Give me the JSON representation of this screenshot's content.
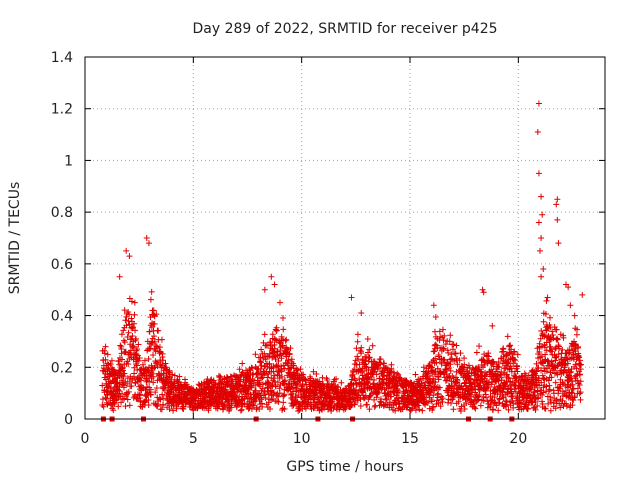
{
  "chart_data": {
    "type": "scatter",
    "title": "Day 289 of 2022, SRMTID for receiver p425",
    "xlabel": "GPS time / hours",
    "ylabel": "SRMTID / TECUs",
    "xlim": [
      0,
      24
    ],
    "ylim": [
      0,
      1.4
    ],
    "x_ticks": [
      0,
      5,
      10,
      15,
      20
    ],
    "x_tick_labels": [
      "0",
      "5",
      "10",
      "15",
      "20"
    ],
    "y_ticks": [
      0,
      0.2,
      0.4,
      0.6,
      0.8,
      1.0,
      1.2,
      1.4
    ],
    "y_tick_labels": [
      "0",
      "0.2",
      "0.4",
      "0.6",
      "0.8",
      "1",
      "1.2",
      "1.4"
    ],
    "grid": true,
    "marker": "+",
    "color": "#e00000",
    "series": [
      {
        "name": "SRMTID",
        "envelope_hours": [
          0.8,
          1.2,
          1.5,
          1.8,
          2.1,
          2.5,
          2.8,
          3.0,
          3.3,
          3.6,
          4.0,
          4.5,
          5.0,
          5.5,
          6.0,
          6.5,
          7.0,
          7.5,
          8.0,
          8.5,
          8.9,
          9.3,
          9.7,
          10.0,
          10.5,
          11.0,
          11.5,
          12.0,
          12.3,
          12.6,
          13.0,
          13.5,
          14.0,
          14.5,
          15.0,
          15.5,
          16.0,
          16.2,
          16.6,
          17.0,
          17.3,
          17.6,
          18.0,
          18.4,
          18.7,
          19.0,
          19.5,
          19.8,
          20.1,
          20.5,
          20.8,
          21.0,
          21.3,
          21.6,
          22.0,
          22.3,
          22.6,
          22.9
        ],
        "envelope_levels": [
          0.2,
          0.15,
          0.15,
          0.3,
          0.4,
          0.2,
          0.15,
          0.35,
          0.35,
          0.2,
          0.12,
          0.1,
          0.08,
          0.1,
          0.1,
          0.12,
          0.12,
          0.15,
          0.18,
          0.25,
          0.3,
          0.25,
          0.15,
          0.12,
          0.12,
          0.1,
          0.1,
          0.08,
          0.12,
          0.25,
          0.2,
          0.18,
          0.15,
          0.12,
          0.1,
          0.12,
          0.18,
          0.28,
          0.28,
          0.25,
          0.18,
          0.15,
          0.15,
          0.22,
          0.2,
          0.18,
          0.25,
          0.22,
          0.12,
          0.12,
          0.15,
          0.3,
          0.35,
          0.3,
          0.25,
          0.22,
          0.25,
          0.25
        ],
        "peaks": [
          [
            0.95,
            0.28
          ],
          [
            1.05,
            0.25
          ],
          [
            1.6,
            0.55
          ],
          [
            1.9,
            0.65
          ],
          [
            2.05,
            0.63
          ],
          [
            2.3,
            0.45
          ],
          [
            2.85,
            0.7
          ],
          [
            2.95,
            0.68
          ],
          [
            3.2,
            0.4
          ],
          [
            8.3,
            0.5
          ],
          [
            8.6,
            0.55
          ],
          [
            8.75,
            0.52
          ],
          [
            9.0,
            0.45
          ],
          [
            12.3,
            0.47
          ],
          [
            12.75,
            0.41
          ],
          [
            16.1,
            0.44
          ],
          [
            18.35,
            0.5
          ],
          [
            18.4,
            0.49
          ],
          [
            18.8,
            0.36
          ],
          [
            20.95,
            1.22
          ],
          [
            20.9,
            1.11
          ],
          [
            20.95,
            0.95
          ],
          [
            21.05,
            0.86
          ],
          [
            21.1,
            0.79
          ],
          [
            20.95,
            0.76
          ],
          [
            21.05,
            0.7
          ],
          [
            21.0,
            0.65
          ],
          [
            21.8,
            0.85
          ],
          [
            21.75,
            0.83
          ],
          [
            21.8,
            0.77
          ],
          [
            21.85,
            0.68
          ],
          [
            22.2,
            0.52
          ],
          [
            22.3,
            0.51
          ],
          [
            22.4,
            0.44
          ],
          [
            22.6,
            0.4
          ],
          [
            22.95,
            0.48
          ],
          [
            21.15,
            0.58
          ],
          [
            21.05,
            0.55
          ],
          [
            21.35,
            0.47
          ]
        ],
        "gap_markers_hours": [
          0.85,
          1.25,
          2.7,
          7.9,
          10.75,
          12.35,
          17.7,
          18.7,
          19.7
        ]
      }
    ]
  }
}
